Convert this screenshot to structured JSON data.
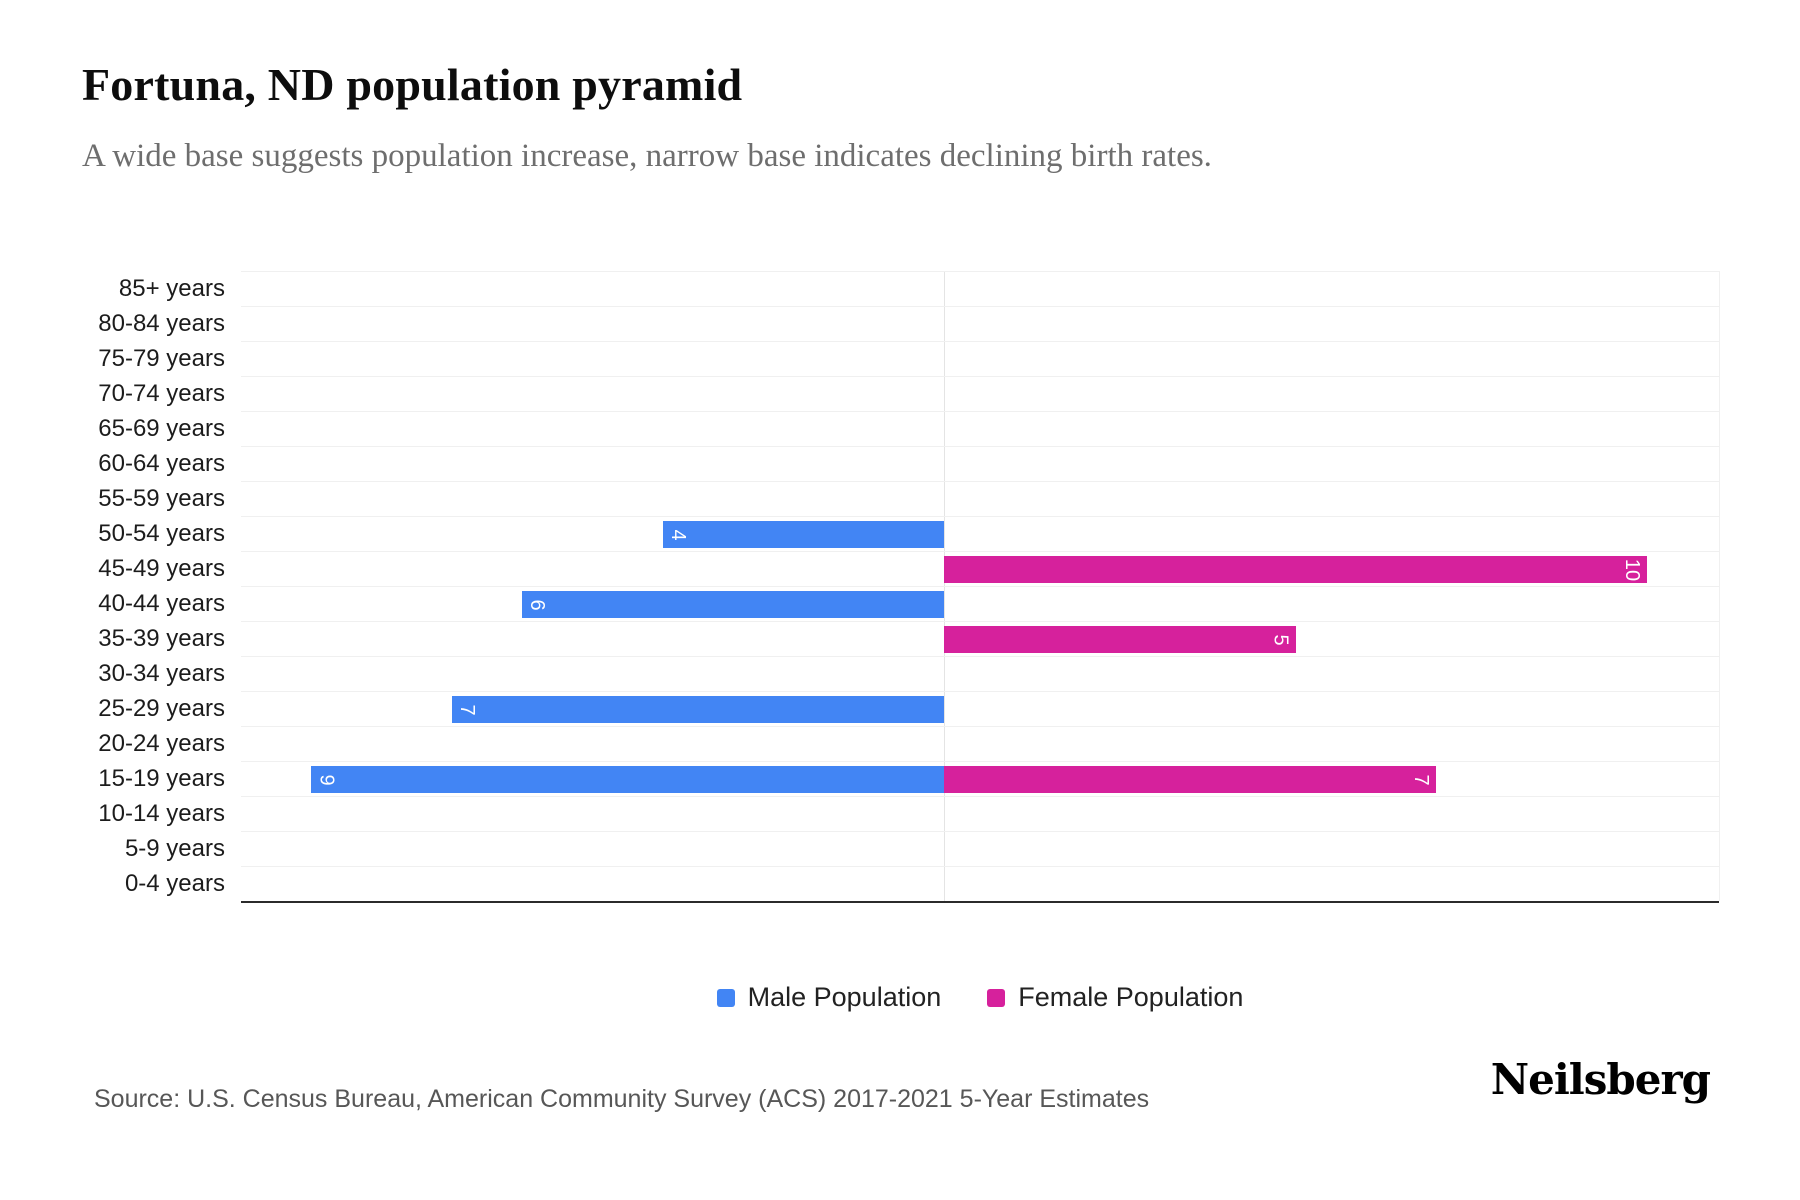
{
  "header": {
    "title": "Fortuna, ND population pyramid",
    "subtitle": "A wide base suggests population increase, narrow base indicates declining birth rates."
  },
  "chart_data": {
    "type": "bar",
    "variant": "population-pyramid",
    "orientation": "horizontal",
    "categories": [
      "85+ years",
      "80-84 years",
      "75-79 years",
      "70-74 years",
      "65-69 years",
      "60-64 years",
      "55-59 years",
      "50-54 years",
      "45-49 years",
      "40-44 years",
      "35-39 years",
      "30-34 years",
      "25-29 years",
      "20-24 years",
      "15-19 years",
      "10-14 years",
      "5-9 years",
      "0-4 years"
    ],
    "series": [
      {
        "name": "Male Population",
        "color": "#4285f4",
        "direction": "left",
        "values": [
          0,
          0,
          0,
          0,
          0,
          0,
          0,
          4,
          0,
          6,
          0,
          0,
          7,
          0,
          9,
          0,
          0,
          0
        ]
      },
      {
        "name": "Female Population",
        "color": "#d6219c",
        "direction": "right",
        "values": [
          0,
          0,
          0,
          0,
          0,
          0,
          0,
          0,
          10,
          0,
          5,
          0,
          0,
          0,
          7,
          0,
          0,
          0
        ]
      }
    ],
    "value_axis_max_per_side": 10,
    "grid": true,
    "legend_position": "bottom"
  },
  "footer": {
    "source": "Source: U.S. Census Bureau, American Community Survey (ACS) 2017-2021 5-Year Estimates",
    "brand": "Neilsberg"
  }
}
